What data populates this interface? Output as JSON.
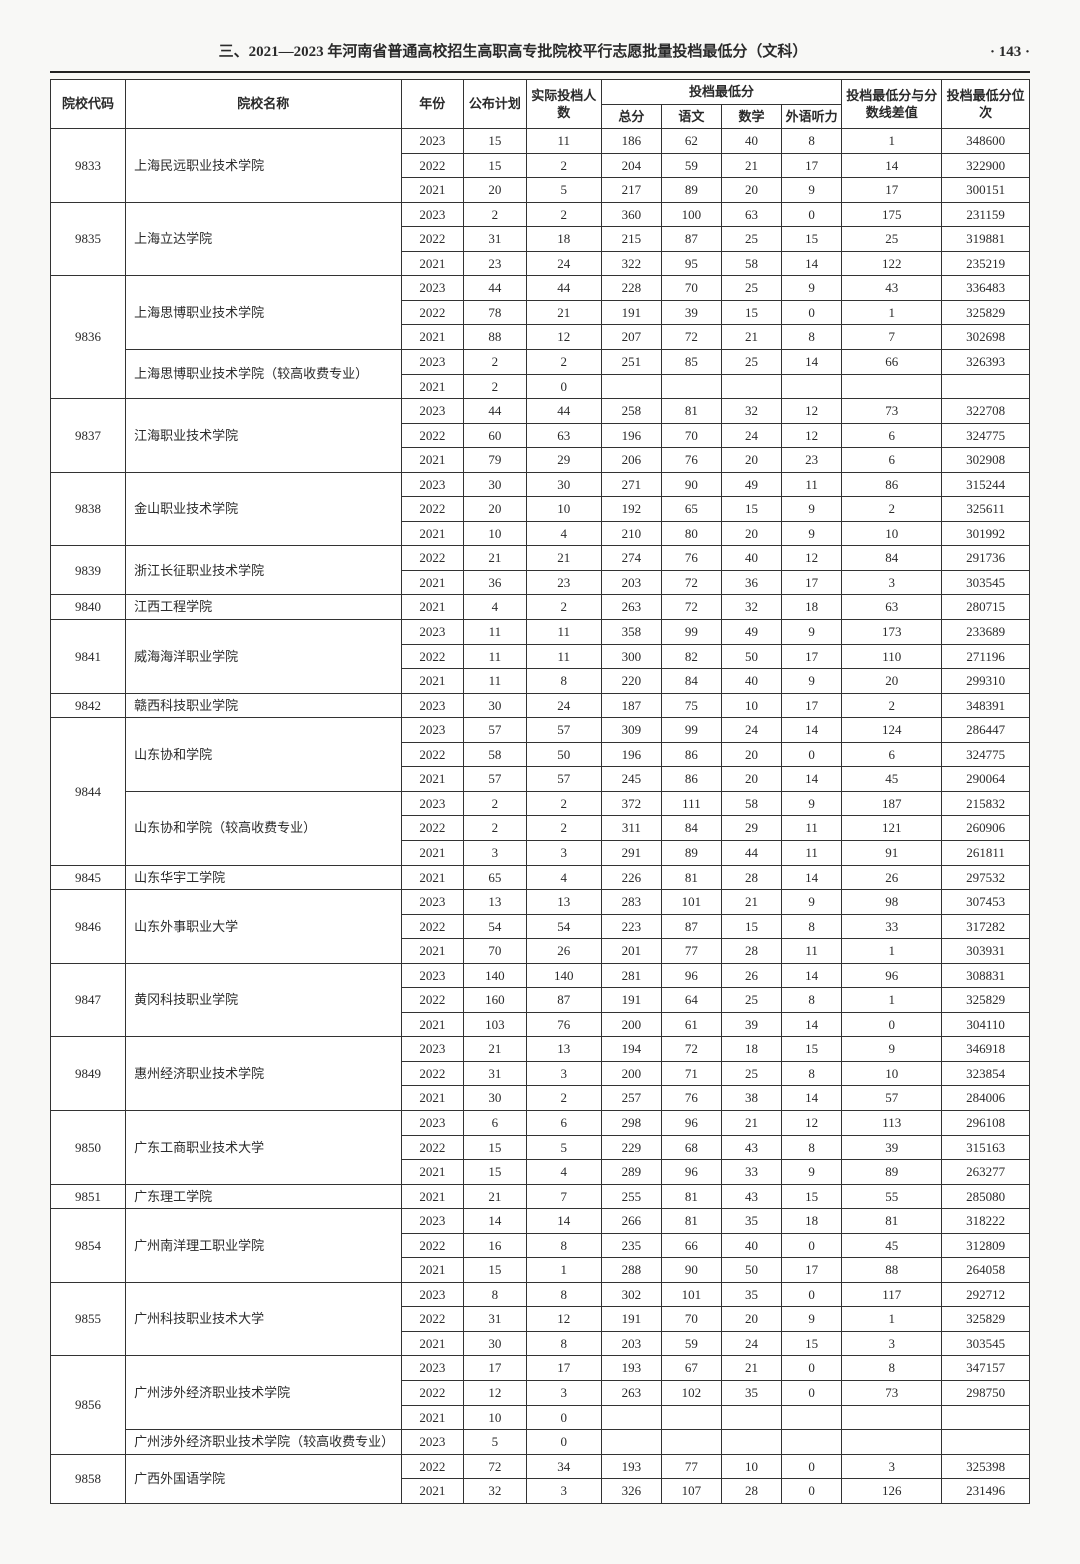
{
  "page": {
    "title": "三、2021—2023 年河南省普通高校招生高职高专批院校平行志愿批量投档最低分（文科）",
    "pageLabel": "· 143 ·"
  },
  "header": {
    "code": "院校代码",
    "name": "院校名称",
    "year": "年份",
    "plan": "公布计划",
    "actual": "实际投档人数",
    "minGroup": "投档最低分",
    "total": "总分",
    "chinese": "语文",
    "math": "数学",
    "listening": "外语听力",
    "diff": "投档最低分与分数线差值",
    "rank": "投档最低分位次"
  },
  "rows": [
    {
      "code": "9833",
      "name": "上海民远职业技术学院",
      "lines": [
        {
          "year": "2023",
          "plan": "15",
          "actual": "11",
          "total": "186",
          "ch": "62",
          "math": "40",
          "lis": "8",
          "diff": "1",
          "rank": "348600"
        },
        {
          "year": "2022",
          "plan": "15",
          "actual": "2",
          "total": "204",
          "ch": "59",
          "math": "21",
          "lis": "17",
          "diff": "14",
          "rank": "322900"
        },
        {
          "year": "2021",
          "plan": "20",
          "actual": "5",
          "total": "217",
          "ch": "89",
          "math": "20",
          "lis": "9",
          "diff": "17",
          "rank": "300151"
        }
      ]
    },
    {
      "code": "9835",
      "name": "上海立达学院",
      "lines": [
        {
          "year": "2023",
          "plan": "2",
          "actual": "2",
          "total": "360",
          "ch": "100",
          "math": "63",
          "lis": "0",
          "diff": "175",
          "rank": "231159"
        },
        {
          "year": "2022",
          "plan": "31",
          "actual": "18",
          "total": "215",
          "ch": "87",
          "math": "25",
          "lis": "15",
          "diff": "25",
          "rank": "319881"
        },
        {
          "year": "2021",
          "plan": "23",
          "actual": "24",
          "total": "322",
          "ch": "95",
          "math": "58",
          "lis": "14",
          "diff": "122",
          "rank": "235219"
        }
      ]
    },
    {
      "code": "9836",
      "names": [
        {
          "name": "上海思博职业技术学院",
          "lines": [
            {
              "year": "2023",
              "plan": "44",
              "actual": "44",
              "total": "228",
              "ch": "70",
              "math": "25",
              "lis": "9",
              "diff": "43",
              "rank": "336483"
            },
            {
              "year": "2022",
              "plan": "78",
              "actual": "21",
              "total": "191",
              "ch": "39",
              "math": "15",
              "lis": "0",
              "diff": "1",
              "rank": "325829"
            },
            {
              "year": "2021",
              "plan": "88",
              "actual": "12",
              "total": "207",
              "ch": "72",
              "math": "21",
              "lis": "8",
              "diff": "7",
              "rank": "302698"
            }
          ]
        },
        {
          "name": "上海思博职业技术学院（较高收费专业）",
          "lines": [
            {
              "year": "2023",
              "plan": "2",
              "actual": "2",
              "total": "251",
              "ch": "85",
              "math": "25",
              "lis": "14",
              "diff": "66",
              "rank": "326393"
            },
            {
              "year": "2021",
              "plan": "2",
              "actual": "0",
              "total": "",
              "ch": "",
              "math": "",
              "lis": "",
              "diff": "",
              "rank": ""
            }
          ]
        }
      ]
    },
    {
      "code": "9837",
      "name": "江海职业技术学院",
      "lines": [
        {
          "year": "2023",
          "plan": "44",
          "actual": "44",
          "total": "258",
          "ch": "81",
          "math": "32",
          "lis": "12",
          "diff": "73",
          "rank": "322708"
        },
        {
          "year": "2022",
          "plan": "60",
          "actual": "63",
          "total": "196",
          "ch": "70",
          "math": "24",
          "lis": "12",
          "diff": "6",
          "rank": "324775"
        },
        {
          "year": "2021",
          "plan": "79",
          "actual": "29",
          "total": "206",
          "ch": "76",
          "math": "20",
          "lis": "23",
          "diff": "6",
          "rank": "302908"
        }
      ]
    },
    {
      "code": "9838",
      "name": "金山职业技术学院",
      "lines": [
        {
          "year": "2023",
          "plan": "30",
          "actual": "30",
          "total": "271",
          "ch": "90",
          "math": "49",
          "lis": "11",
          "diff": "86",
          "rank": "315244"
        },
        {
          "year": "2022",
          "plan": "20",
          "actual": "10",
          "total": "192",
          "ch": "65",
          "math": "15",
          "lis": "9",
          "diff": "2",
          "rank": "325611"
        },
        {
          "year": "2021",
          "plan": "10",
          "actual": "4",
          "total": "210",
          "ch": "80",
          "math": "20",
          "lis": "9",
          "diff": "10",
          "rank": "301992"
        }
      ]
    },
    {
      "code": "9839",
      "name": "浙江长征职业技术学院",
      "lines": [
        {
          "year": "2022",
          "plan": "21",
          "actual": "21",
          "total": "274",
          "ch": "76",
          "math": "40",
          "lis": "12",
          "diff": "84",
          "rank": "291736"
        },
        {
          "year": "2021",
          "plan": "36",
          "actual": "23",
          "total": "203",
          "ch": "72",
          "math": "36",
          "lis": "17",
          "diff": "3",
          "rank": "303545"
        }
      ]
    },
    {
      "code": "9840",
      "name": "江西工程学院",
      "lines": [
        {
          "year": "2021",
          "plan": "4",
          "actual": "2",
          "total": "263",
          "ch": "72",
          "math": "32",
          "lis": "18",
          "diff": "63",
          "rank": "280715"
        }
      ]
    },
    {
      "code": "9841",
      "name": "威海海洋职业学院",
      "lines": [
        {
          "year": "2023",
          "plan": "11",
          "actual": "11",
          "total": "358",
          "ch": "99",
          "math": "49",
          "lis": "9",
          "diff": "173",
          "rank": "233689"
        },
        {
          "year": "2022",
          "plan": "11",
          "actual": "11",
          "total": "300",
          "ch": "82",
          "math": "50",
          "lis": "17",
          "diff": "110",
          "rank": "271196"
        },
        {
          "year": "2021",
          "plan": "11",
          "actual": "8",
          "total": "220",
          "ch": "84",
          "math": "40",
          "lis": "9",
          "diff": "20",
          "rank": "299310"
        }
      ]
    },
    {
      "code": "9842",
      "name": "赣西科技职业学院",
      "lines": [
        {
          "year": "2023",
          "plan": "30",
          "actual": "24",
          "total": "187",
          "ch": "75",
          "math": "10",
          "lis": "17",
          "diff": "2",
          "rank": "348391"
        }
      ]
    },
    {
      "code": "9844",
      "names": [
        {
          "name": "山东协和学院",
          "lines": [
            {
              "year": "2023",
              "plan": "57",
              "actual": "57",
              "total": "309",
              "ch": "99",
              "math": "24",
              "lis": "14",
              "diff": "124",
              "rank": "286447"
            },
            {
              "year": "2022",
              "plan": "58",
              "actual": "50",
              "total": "196",
              "ch": "86",
              "math": "20",
              "lis": "0",
              "diff": "6",
              "rank": "324775"
            },
            {
              "year": "2021",
              "plan": "57",
              "actual": "57",
              "total": "245",
              "ch": "86",
              "math": "20",
              "lis": "14",
              "diff": "45",
              "rank": "290064"
            }
          ]
        },
        {
          "name": "山东协和学院（较高收费专业）",
          "lines": [
            {
              "year": "2023",
              "plan": "2",
              "actual": "2",
              "total": "372",
              "ch": "111",
              "math": "58",
              "lis": "9",
              "diff": "187",
              "rank": "215832"
            },
            {
              "year": "2022",
              "plan": "2",
              "actual": "2",
              "total": "311",
              "ch": "84",
              "math": "29",
              "lis": "11",
              "diff": "121",
              "rank": "260906"
            },
            {
              "year": "2021",
              "plan": "3",
              "actual": "3",
              "total": "291",
              "ch": "89",
              "math": "44",
              "lis": "11",
              "diff": "91",
              "rank": "261811"
            }
          ]
        }
      ]
    },
    {
      "code": "9845",
      "name": "山东华宇工学院",
      "lines": [
        {
          "year": "2021",
          "plan": "65",
          "actual": "4",
          "total": "226",
          "ch": "81",
          "math": "28",
          "lis": "14",
          "diff": "26",
          "rank": "297532"
        }
      ]
    },
    {
      "code": "9846",
      "name": "山东外事职业大学",
      "lines": [
        {
          "year": "2023",
          "plan": "13",
          "actual": "13",
          "total": "283",
          "ch": "101",
          "math": "21",
          "lis": "9",
          "diff": "98",
          "rank": "307453"
        },
        {
          "year": "2022",
          "plan": "54",
          "actual": "54",
          "total": "223",
          "ch": "87",
          "math": "15",
          "lis": "8",
          "diff": "33",
          "rank": "317282"
        },
        {
          "year": "2021",
          "plan": "70",
          "actual": "26",
          "total": "201",
          "ch": "77",
          "math": "28",
          "lis": "11",
          "diff": "1",
          "rank": "303931"
        }
      ]
    },
    {
      "code": "9847",
      "name": "黄冈科技职业学院",
      "lines": [
        {
          "year": "2023",
          "plan": "140",
          "actual": "140",
          "total": "281",
          "ch": "96",
          "math": "26",
          "lis": "14",
          "diff": "96",
          "rank": "308831"
        },
        {
          "year": "2022",
          "plan": "160",
          "actual": "87",
          "total": "191",
          "ch": "64",
          "math": "25",
          "lis": "8",
          "diff": "1",
          "rank": "325829"
        },
        {
          "year": "2021",
          "plan": "103",
          "actual": "76",
          "total": "200",
          "ch": "61",
          "math": "39",
          "lis": "14",
          "diff": "0",
          "rank": "304110"
        }
      ]
    },
    {
      "code": "9849",
      "name": "惠州经济职业技术学院",
      "lines": [
        {
          "year": "2023",
          "plan": "21",
          "actual": "13",
          "total": "194",
          "ch": "72",
          "math": "18",
          "lis": "15",
          "diff": "9",
          "rank": "346918"
        },
        {
          "year": "2022",
          "plan": "31",
          "actual": "3",
          "total": "200",
          "ch": "71",
          "math": "25",
          "lis": "8",
          "diff": "10",
          "rank": "323854"
        },
        {
          "year": "2021",
          "plan": "30",
          "actual": "2",
          "total": "257",
          "ch": "76",
          "math": "38",
          "lis": "14",
          "diff": "57",
          "rank": "284006"
        }
      ]
    },
    {
      "code": "9850",
      "name": "广东工商职业技术大学",
      "lines": [
        {
          "year": "2023",
          "plan": "6",
          "actual": "6",
          "total": "298",
          "ch": "96",
          "math": "21",
          "lis": "12",
          "diff": "113",
          "rank": "296108"
        },
        {
          "year": "2022",
          "plan": "15",
          "actual": "5",
          "total": "229",
          "ch": "68",
          "math": "43",
          "lis": "8",
          "diff": "39",
          "rank": "315163"
        },
        {
          "year": "2021",
          "plan": "15",
          "actual": "4",
          "total": "289",
          "ch": "96",
          "math": "33",
          "lis": "9",
          "diff": "89",
          "rank": "263277"
        }
      ]
    },
    {
      "code": "9851",
      "name": "广东理工学院",
      "lines": [
        {
          "year": "2021",
          "plan": "21",
          "actual": "7",
          "total": "255",
          "ch": "81",
          "math": "43",
          "lis": "15",
          "diff": "55",
          "rank": "285080"
        }
      ]
    },
    {
      "code": "9854",
      "name": "广州南洋理工职业学院",
      "lines": [
        {
          "year": "2023",
          "plan": "14",
          "actual": "14",
          "total": "266",
          "ch": "81",
          "math": "35",
          "lis": "18",
          "diff": "81",
          "rank": "318222"
        },
        {
          "year": "2022",
          "plan": "16",
          "actual": "8",
          "total": "235",
          "ch": "66",
          "math": "40",
          "lis": "0",
          "diff": "45",
          "rank": "312809"
        },
        {
          "year": "2021",
          "plan": "15",
          "actual": "1",
          "total": "288",
          "ch": "90",
          "math": "50",
          "lis": "17",
          "diff": "88",
          "rank": "264058"
        }
      ]
    },
    {
      "code": "9855",
      "name": "广州科技职业技术大学",
      "lines": [
        {
          "year": "2023",
          "plan": "8",
          "actual": "8",
          "total": "302",
          "ch": "101",
          "math": "35",
          "lis": "0",
          "diff": "117",
          "rank": "292712"
        },
        {
          "year": "2022",
          "plan": "31",
          "actual": "12",
          "total": "191",
          "ch": "70",
          "math": "20",
          "lis": "9",
          "diff": "1",
          "rank": "325829"
        },
        {
          "year": "2021",
          "plan": "30",
          "actual": "8",
          "total": "203",
          "ch": "59",
          "math": "24",
          "lis": "15",
          "diff": "3",
          "rank": "303545"
        }
      ]
    },
    {
      "code": "9856",
      "names": [
        {
          "name": "广州涉外经济职业技术学院",
          "lines": [
            {
              "year": "2023",
              "plan": "17",
              "actual": "17",
              "total": "193",
              "ch": "67",
              "math": "21",
              "lis": "0",
              "diff": "8",
              "rank": "347157"
            },
            {
              "year": "2022",
              "plan": "12",
              "actual": "3",
              "total": "263",
              "ch": "102",
              "math": "35",
              "lis": "0",
              "diff": "73",
              "rank": "298750"
            },
            {
              "year": "2021",
              "plan": "10",
              "actual": "0",
              "total": "",
              "ch": "",
              "math": "",
              "lis": "",
              "diff": "",
              "rank": ""
            }
          ]
        },
        {
          "name": "广州涉外经济职业技术学院（较高收费专业）",
          "lines": [
            {
              "year": "2023",
              "plan": "5",
              "actual": "0",
              "total": "",
              "ch": "",
              "math": "",
              "lis": "",
              "diff": "",
              "rank": ""
            }
          ]
        }
      ]
    },
    {
      "code": "9858",
      "name": "广西外国语学院",
      "lines": [
        {
          "year": "2022",
          "plan": "72",
          "actual": "34",
          "total": "193",
          "ch": "77",
          "math": "10",
          "lis": "0",
          "diff": "3",
          "rank": "325398"
        },
        {
          "year": "2021",
          "plan": "32",
          "actual": "3",
          "total": "326",
          "ch": "107",
          "math": "28",
          "lis": "0",
          "diff": "126",
          "rank": "231496"
        }
      ]
    }
  ]
}
